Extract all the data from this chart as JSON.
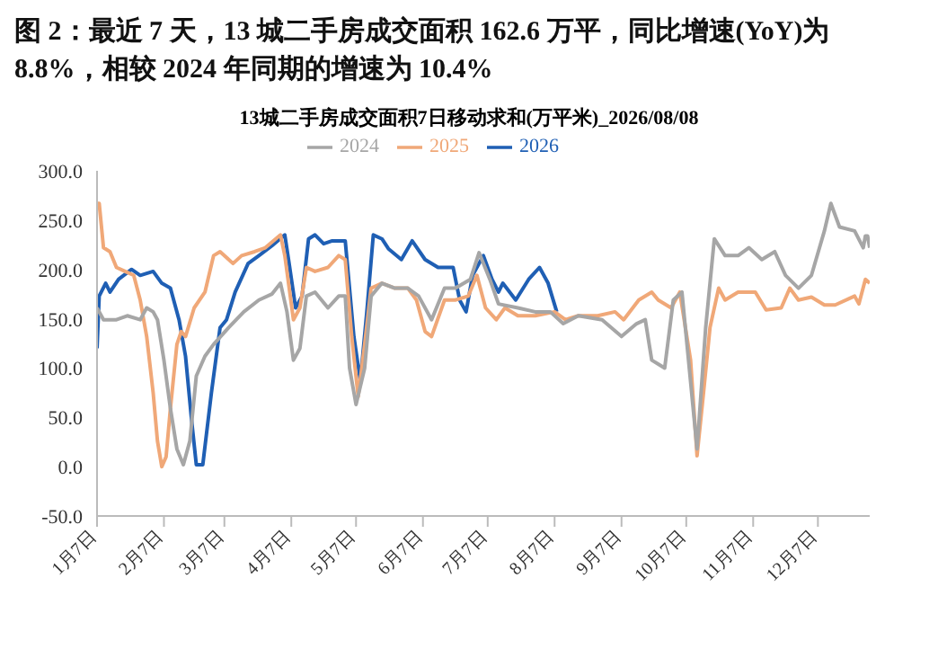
{
  "chart_data": {
    "type": "line",
    "title": "图 2：最近 7 天，13 城二手房成交面积 162.6 万平，同比增速(YoY)为 8.8%，相较 2024 年同期的增速为 10.4%",
    "subtitle": "13城二手房成交面积7日移动求和(万平米)_2026/08/08",
    "xlim": [
      "--01-07",
      "--12-31"
    ],
    "xticks": [
      {
        "value": "--01-07",
        "label": "1月7日"
      },
      {
        "value": "--02-07",
        "label": "2月7日"
      },
      {
        "value": "--03-07",
        "label": "3月7日"
      },
      {
        "value": "--04-07",
        "label": "4月7日"
      },
      {
        "value": "--05-07",
        "label": "5月7日"
      },
      {
        "value": "--06-07",
        "label": "6月7日"
      },
      {
        "value": "--07-07",
        "label": "7月7日"
      },
      {
        "value": "--08-07",
        "label": "8月7日"
      },
      {
        "value": "--09-07",
        "label": "9月7日"
      },
      {
        "value": "--10-07",
        "label": "10月7日"
      },
      {
        "value": "--11-07",
        "label": "11月7日"
      },
      {
        "value": "--12-07",
        "label": "12月7日"
      }
    ],
    "ylim": [
      -50,
      300
    ],
    "yticks": [
      {
        "value": -50,
        "label": "-50.0"
      },
      {
        "value": 0,
        "label": "0.0"
      },
      {
        "value": 50,
        "label": "50.0"
      },
      {
        "value": 100,
        "label": "100.0"
      },
      {
        "value": 150,
        "label": "150.0"
      },
      {
        "value": 200,
        "label": "200.0"
      },
      {
        "value": 250,
        "label": "250.0"
      },
      {
        "value": 300,
        "label": "300.0"
      }
    ],
    "legend": "top",
    "marker": "none",
    "line_style": "solid",
    "series": [
      {
        "name": "2026",
        "color": "#1f5fb4",
        "x": [
          "--01-07",
          "--01-08",
          "--01-11",
          "--01-13",
          "--01-17",
          "--01-23",
          "--01-27",
          "--02-02",
          "--02-06",
          "--02-10",
          "--02-14",
          "--02-17",
          "--02-20",
          "--02-22",
          "--02-25",
          "--03-01",
          "--03-05",
          "--03-08",
          "--03-12",
          "--03-18",
          "--03-23",
          "--03-29",
          "--04-04",
          "--04-06",
          "--04-09",
          "--04-12",
          "--04-15",
          "--04-18",
          "--04-22",
          "--04-26",
          "--05-02",
          "--05-06",
          "--05-09",
          "--05-12",
          "--05-15",
          "--05-19",
          "--05-22",
          "--05-28",
          "--06-02",
          "--06-08",
          "--06-14",
          "--06-21",
          "--06-24",
          "--06-27",
          "--06-30",
          "--07-05",
          "--07-09",
          "--07-12",
          "--07-14",
          "--07-20",
          "--07-26",
          "--07-31",
          "--08-04",
          "--08-08"
        ],
        "values": [
          120,
          173,
          186,
          177,
          190,
          200,
          194,
          198,
          186,
          181,
          149,
          112,
          43,
          2,
          2,
          75,
          141,
          149,
          177,
          206,
          214,
          224,
          235,
          206,
          161,
          173,
          231,
          235,
          226,
          229,
          229,
          132,
          87,
          157,
          235,
          231,
          221,
          210,
          229,
          210,
          202,
          202,
          169,
          157,
          194,
          214,
          190,
          177,
          186,
          169,
          190,
          202,
          186,
          157
        ]
      },
      {
        "name": "2025",
        "color": "#f0a878",
        "x": [
          "--01-07",
          "--01-08",
          "--01-10",
          "--01-13",
          "--01-16",
          "--01-20",
          "--01-24",
          "--01-27",
          "--01-30",
          "--02-02",
          "--02-04",
          "--02-06",
          "--02-08",
          "--02-10",
          "--02-13",
          "--02-15",
          "--02-17",
          "--02-21",
          "--02-26",
          "--03-02",
          "--03-05",
          "--03-11",
          "--03-15",
          "--03-21",
          "--03-26",
          "--04-02",
          "--04-04",
          "--04-08",
          "--04-11",
          "--04-14",
          "--04-18",
          "--04-24",
          "--04-29",
          "--05-02",
          "--05-05",
          "--05-08",
          "--05-11",
          "--05-14",
          "--05-19",
          "--05-25",
          "--05-31",
          "--06-04",
          "--06-08",
          "--06-11",
          "--06-17",
          "--06-22",
          "--06-28",
          "--07-02",
          "--07-06",
          "--07-11",
          "--07-15",
          "--07-21",
          "--07-29",
          "--08-07",
          "--08-12",
          "--08-18",
          "--08-27",
          "--09-04",
          "--09-08",
          "--09-15",
          "--09-21",
          "--09-24",
          "--09-30",
          "--10-04",
          "--10-09",
          "--10-12",
          "--10-15",
          "--10-18",
          "--10-22",
          "--10-25",
          "--10-31",
          "--11-08",
          "--11-13",
          "--11-20",
          "--11-24",
          "--11-28",
          "--12-04",
          "--12-10",
          "--12-15",
          "--12-24",
          "--12-26",
          "--12-29",
          "--12-31"
        ],
        "values": [
          267,
          267,
          222,
          218,
          202,
          198,
          194,
          169,
          132,
          75,
          26,
          0,
          10,
          59,
          124,
          137,
          132,
          161,
          177,
          214,
          218,
          206,
          214,
          218,
          222,
          235,
          214,
          149,
          161,
          202,
          198,
          202,
          214,
          210,
          132,
          71,
          124,
          181,
          186,
          181,
          181,
          169,
          137,
          132,
          169,
          169,
          173,
          194,
          161,
          149,
          161,
          153,
          153,
          157,
          149,
          153,
          153,
          157,
          149,
          169,
          177,
          169,
          161,
          177,
          108,
          11,
          75,
          141,
          181,
          169,
          177,
          177,
          159,
          161,
          181,
          169,
          172,
          164,
          164,
          173,
          165,
          190,
          186
        ]
      },
      {
        "name": "2024",
        "color": "#a6a6a6",
        "x": [
          "--01-07",
          "--01-10",
          "--01-16",
          "--01-21",
          "--01-27",
          "--01-30",
          "--02-02",
          "--02-04",
          "--02-07",
          "--02-10",
          "--02-13",
          "--02-16",
          "--02-19",
          "--02-22",
          "--02-26",
          "--03-02",
          "--03-09",
          "--03-16",
          "--03-23",
          "--03-29",
          "--04-02",
          "--04-05",
          "--04-08",
          "--04-11",
          "--04-14",
          "--04-18",
          "--04-24",
          "--04-29",
          "--05-02",
          "--05-04",
          "--05-07",
          "--05-11",
          "--05-14",
          "--05-19",
          "--05-25",
          "--05-31",
          "--06-05",
          "--06-11",
          "--06-17",
          "--06-22",
          "--06-29",
          "--07-03",
          "--07-08",
          "--07-12",
          "--07-21",
          "--07-29",
          "--08-05",
          "--08-11",
          "--08-18",
          "--08-29",
          "--09-07",
          "--09-14",
          "--09-18",
          "--09-21",
          "--09-24",
          "--09-27",
          "--10-01",
          "--10-05",
          "--10-12",
          "--10-16",
          "--10-20",
          "--10-25",
          "--10-31",
          "--11-05",
          "--11-11",
          "--11-17",
          "--11-22",
          "--11-28",
          "--12-04",
          "--12-10",
          "--12-13",
          "--12-17",
          "--12-24",
          "--12-28",
          "--12-29",
          "--12-30",
          "--12-31"
        ],
        "values": [
          161,
          149,
          149,
          153,
          149,
          161,
          157,
          149,
          108,
          59,
          18,
          2,
          26,
          92,
          112,
          124,
          141,
          157,
          169,
          175,
          186,
          157,
          108,
          120,
          173,
          177,
          161,
          173,
          173,
          100,
          63,
          100,
          173,
          186,
          181,
          181,
          173,
          149,
          181,
          181,
          190,
          217,
          190,
          165,
          161,
          157,
          157,
          145,
          153,
          149,
          132,
          145,
          149,
          108,
          104,
          100,
          169,
          177,
          18,
          141,
          231,
          214,
          214,
          222,
          210,
          218,
          194,
          181,
          194,
          239,
          267,
          243,
          239,
          222,
          234,
          234,
          222
        ]
      }
    ]
  }
}
